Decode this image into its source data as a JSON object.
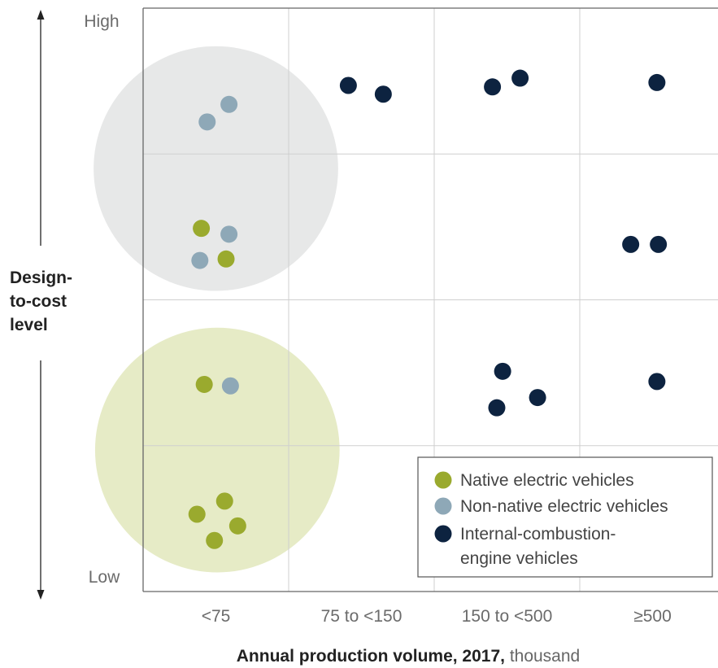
{
  "chart_data": {
    "type": "scatter",
    "title": "",
    "xlabel": "Annual production volume, 2017,",
    "xlabel_unit": "thousand",
    "ylabel_lines": [
      "Design-",
      "to-cost",
      "level"
    ],
    "y_high_label": "High",
    "y_low_label": "Low",
    "categories": [
      "<75",
      "75 to <150",
      "150 to <500",
      "≥500"
    ],
    "x_range": [
      0,
      4
    ],
    "y_range": [
      0,
      4
    ],
    "grid": true,
    "legend_position": "bottom-right",
    "series": [
      {
        "name": "Native electric vehicles",
        "color": "#9aaa2e",
        "points": [
          {
            "x": 0.4,
            "y": 2.49
          },
          {
            "x": 0.57,
            "y": 2.28
          },
          {
            "x": 0.42,
            "y": 1.42
          },
          {
            "x": 0.56,
            "y": 0.62
          },
          {
            "x": 0.37,
            "y": 0.53
          },
          {
            "x": 0.65,
            "y": 0.45
          },
          {
            "x": 0.49,
            "y": 0.35
          }
        ]
      },
      {
        "name": "Non-native electric vehicles",
        "color": "#8ea8b7",
        "points": [
          {
            "x": 0.59,
            "y": 3.34
          },
          {
            "x": 0.44,
            "y": 3.22
          },
          {
            "x": 0.59,
            "y": 2.45
          },
          {
            "x": 0.39,
            "y": 2.27
          },
          {
            "x": 0.6,
            "y": 1.41
          }
        ]
      },
      {
        "name": "Internal-combustion-engine vehicles",
        "legend_lines": [
          "Internal-combustion-",
          "engine vehicles"
        ],
        "color": "#0d2340",
        "points": [
          {
            "x": 1.41,
            "y": 3.47
          },
          {
            "x": 1.65,
            "y": 3.41
          },
          {
            "x": 2.4,
            "y": 3.46
          },
          {
            "x": 2.59,
            "y": 3.52
          },
          {
            "x": 3.53,
            "y": 3.49
          },
          {
            "x": 3.35,
            "y": 2.38
          },
          {
            "x": 3.54,
            "y": 2.38
          },
          {
            "x": 2.47,
            "y": 1.51
          },
          {
            "x": 2.71,
            "y": 1.33
          },
          {
            "x": 2.43,
            "y": 1.26
          },
          {
            "x": 3.53,
            "y": 1.44
          }
        ]
      }
    ],
    "groupings": [
      {
        "cx": 0.5,
        "cy": 2.9,
        "r": 0.84,
        "color": "#e7e8e8"
      },
      {
        "cx": 0.51,
        "cy": 0.97,
        "r": 0.84,
        "color": "#e6ebc6"
      }
    ]
  }
}
